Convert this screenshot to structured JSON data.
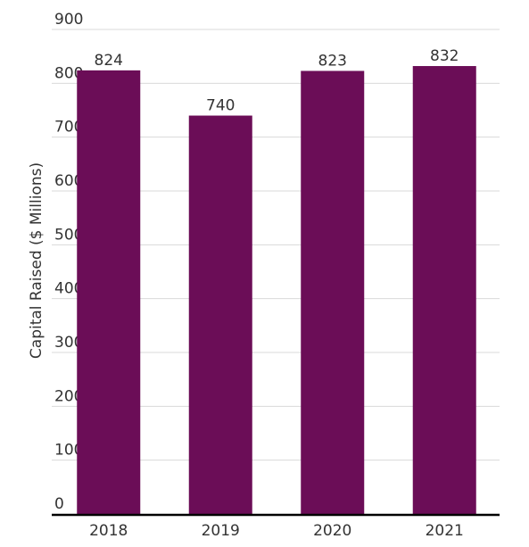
{
  "chart_data": {
    "type": "bar",
    "categories": [
      "2018",
      "2019",
      "2020",
      "2021"
    ],
    "values": [
      824,
      740,
      823,
      832
    ],
    "data_labels": [
      "824",
      "740",
      "823",
      "832"
    ],
    "ylabel": "Capital Raised ($ Millions)",
    "xlabel": "",
    "ylim": [
      0,
      900
    ],
    "yticks": [
      0,
      100,
      200,
      300,
      400,
      500,
      600,
      700,
      800,
      900
    ],
    "grid": true,
    "legend": "none",
    "colors": {
      "bar": "#6b0d57",
      "grid": "#d9d9d9",
      "axis": "#000000",
      "text": "#333333"
    }
  }
}
